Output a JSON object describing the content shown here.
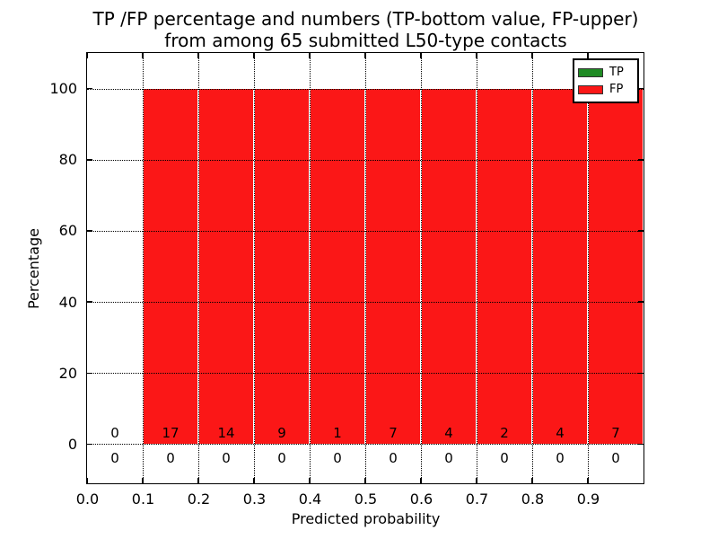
{
  "title": {
    "line1": "TP /FP percentage and numbers (TP-bottom value, FP-upper)",
    "line2": "from among 65 submitted L50-type contacts"
  },
  "chart_data": {
    "type": "bar",
    "stacked": true,
    "title": "TP /FP percentage and numbers (TP-bottom value, FP-upper) from among 65 submitted L50-type contacts",
    "xlabel": "Predicted probability",
    "ylabel": "Percentage",
    "xlim": [
      0.0,
      1.0
    ],
    "ylim": [
      -11,
      110
    ],
    "x_tick_labels": [
      "0.0",
      "0.1",
      "0.2",
      "0.3",
      "0.4",
      "0.5",
      "0.6",
      "0.7",
      "0.8",
      "0.9"
    ],
    "y_tick_values": [
      0,
      20,
      40,
      60,
      80,
      100
    ],
    "bin_edges": [
      0.0,
      0.1,
      0.2,
      0.3,
      0.4,
      0.5,
      0.6,
      0.7,
      0.8,
      0.9,
      1.0
    ],
    "grid": "dotted",
    "legend_position": "upper-right",
    "series": [
      {
        "name": "TP",
        "color": "#1f8b24",
        "percentages": [
          0,
          0,
          0,
          0,
          0,
          0,
          0,
          0,
          0,
          0
        ],
        "counts": [
          0,
          0,
          0,
          0,
          0,
          0,
          0,
          0,
          0,
          0
        ],
        "count_row": "below_zero_line"
      },
      {
        "name": "FP",
        "color": "#fb1717",
        "percentages": [
          0,
          100,
          100,
          100,
          100,
          100,
          100,
          100,
          100,
          100
        ],
        "counts": [
          0,
          17,
          14,
          9,
          1,
          7,
          4,
          2,
          4,
          7
        ],
        "count_row": "above_zero_line"
      }
    ],
    "total_contacts": 65
  }
}
